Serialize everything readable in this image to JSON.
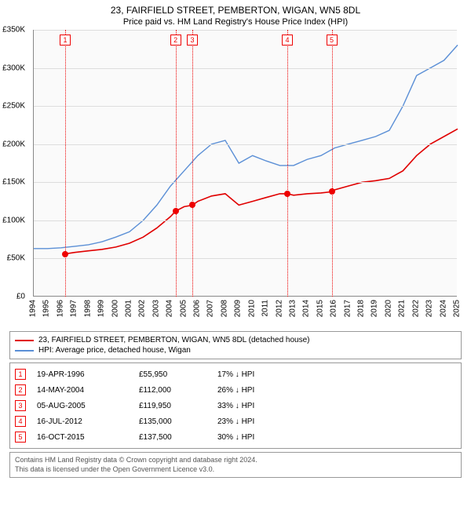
{
  "title": "23, FAIRFIELD STREET, PEMBERTON, WIGAN, WN5 8DL",
  "subtitle": "Price paid vs. HM Land Registry's House Price Index (HPI)",
  "chart": {
    "type": "line",
    "background_color": "#fafafa",
    "grid_color": "#dddddd",
    "axis_color": "#888888",
    "x": {
      "min": 1994,
      "max": 2025,
      "step": 1,
      "label_fontsize": 10
    },
    "y": {
      "min": 0,
      "max": 350000,
      "step": 50000,
      "format": "£K",
      "label_fontsize": 10,
      "ticks": [
        "£0",
        "£50K",
        "£100K",
        "£150K",
        "£200K",
        "£250K",
        "£300K",
        "£350K"
      ]
    },
    "series": [
      {
        "name": "23, FAIRFIELD STREET, PEMBERTON, WIGAN, WN5 8DL (detached house)",
        "color": "#e00000",
        "line_width": 1.6,
        "data": [
          [
            1996.3,
            55950
          ],
          [
            1997,
            58000
          ],
          [
            1998,
            60000
          ],
          [
            1999,
            62000
          ],
          [
            2000,
            65000
          ],
          [
            2001,
            70000
          ],
          [
            2002,
            78000
          ],
          [
            2003,
            90000
          ],
          [
            2004,
            105000
          ],
          [
            2004.37,
            112000
          ],
          [
            2005,
            118000
          ],
          [
            2005.6,
            119950
          ],
          [
            2006,
            125000
          ],
          [
            2007,
            132000
          ],
          [
            2008,
            135000
          ],
          [
            2009,
            120000
          ],
          [
            2010,
            125000
          ],
          [
            2011,
            130000
          ],
          [
            2012,
            135000
          ],
          [
            2012.54,
            135000
          ],
          [
            2013,
            133000
          ],
          [
            2014,
            135000
          ],
          [
            2015,
            136000
          ],
          [
            2015.79,
            137500
          ],
          [
            2016,
            140000
          ],
          [
            2017,
            145000
          ],
          [
            2018,
            150000
          ],
          [
            2019,
            152000
          ],
          [
            2020,
            155000
          ],
          [
            2021,
            165000
          ],
          [
            2022,
            185000
          ],
          [
            2023,
            200000
          ],
          [
            2024,
            210000
          ],
          [
            2025,
            220000
          ]
        ]
      },
      {
        "name": "HPI: Average price, detached house, Wigan",
        "color": "#5b8fd6",
        "line_width": 1.4,
        "data": [
          [
            1994,
            63000
          ],
          [
            1995,
            63000
          ],
          [
            1996,
            64000
          ],
          [
            1997,
            66000
          ],
          [
            1998,
            68000
          ],
          [
            1999,
            72000
          ],
          [
            2000,
            78000
          ],
          [
            2001,
            85000
          ],
          [
            2002,
            100000
          ],
          [
            2003,
            120000
          ],
          [
            2004,
            145000
          ],
          [
            2005,
            165000
          ],
          [
            2006,
            185000
          ],
          [
            2007,
            200000
          ],
          [
            2008,
            205000
          ],
          [
            2009,
            175000
          ],
          [
            2010,
            185000
          ],
          [
            2011,
            178000
          ],
          [
            2012,
            172000
          ],
          [
            2013,
            172000
          ],
          [
            2014,
            180000
          ],
          [
            2015,
            185000
          ],
          [
            2016,
            195000
          ],
          [
            2017,
            200000
          ],
          [
            2018,
            205000
          ],
          [
            2019,
            210000
          ],
          [
            2020,
            218000
          ],
          [
            2021,
            250000
          ],
          [
            2022,
            290000
          ],
          [
            2023,
            300000
          ],
          [
            2024,
            310000
          ],
          [
            2025,
            330000
          ]
        ]
      }
    ],
    "markers": [
      {
        "n": "1",
        "year": 1996.3,
        "value": 55950
      },
      {
        "n": "2",
        "year": 2004.37,
        "value": 112000
      },
      {
        "n": "3",
        "year": 2005.6,
        "value": 119950
      },
      {
        "n": "4",
        "year": 2012.54,
        "value": 135000
      },
      {
        "n": "5",
        "year": 2015.79,
        "value": 137500
      }
    ]
  },
  "legend": [
    {
      "color": "#e00000",
      "label": "23, FAIRFIELD STREET, PEMBERTON, WIGAN, WN5 8DL (detached house)"
    },
    {
      "color": "#5b8fd6",
      "label": "HPI: Average price, detached house, Wigan"
    }
  ],
  "transactions": [
    {
      "n": "1",
      "date": "19-APR-1996",
      "price": "£55,950",
      "pct": "17% ↓ HPI"
    },
    {
      "n": "2",
      "date": "14-MAY-2004",
      "price": "£112,000",
      "pct": "26% ↓ HPI"
    },
    {
      "n": "3",
      "date": "05-AUG-2005",
      "price": "£119,950",
      "pct": "33% ↓ HPI"
    },
    {
      "n": "4",
      "date": "16-JUL-2012",
      "price": "£135,000",
      "pct": "23% ↓ HPI"
    },
    {
      "n": "5",
      "date": "16-OCT-2015",
      "price": "£137,500",
      "pct": "30% ↓ HPI"
    }
  ],
  "footer": {
    "line1": "Contains HM Land Registry data © Crown copyright and database right 2024.",
    "line2": "This data is licensed under the Open Government Licence v3.0."
  }
}
